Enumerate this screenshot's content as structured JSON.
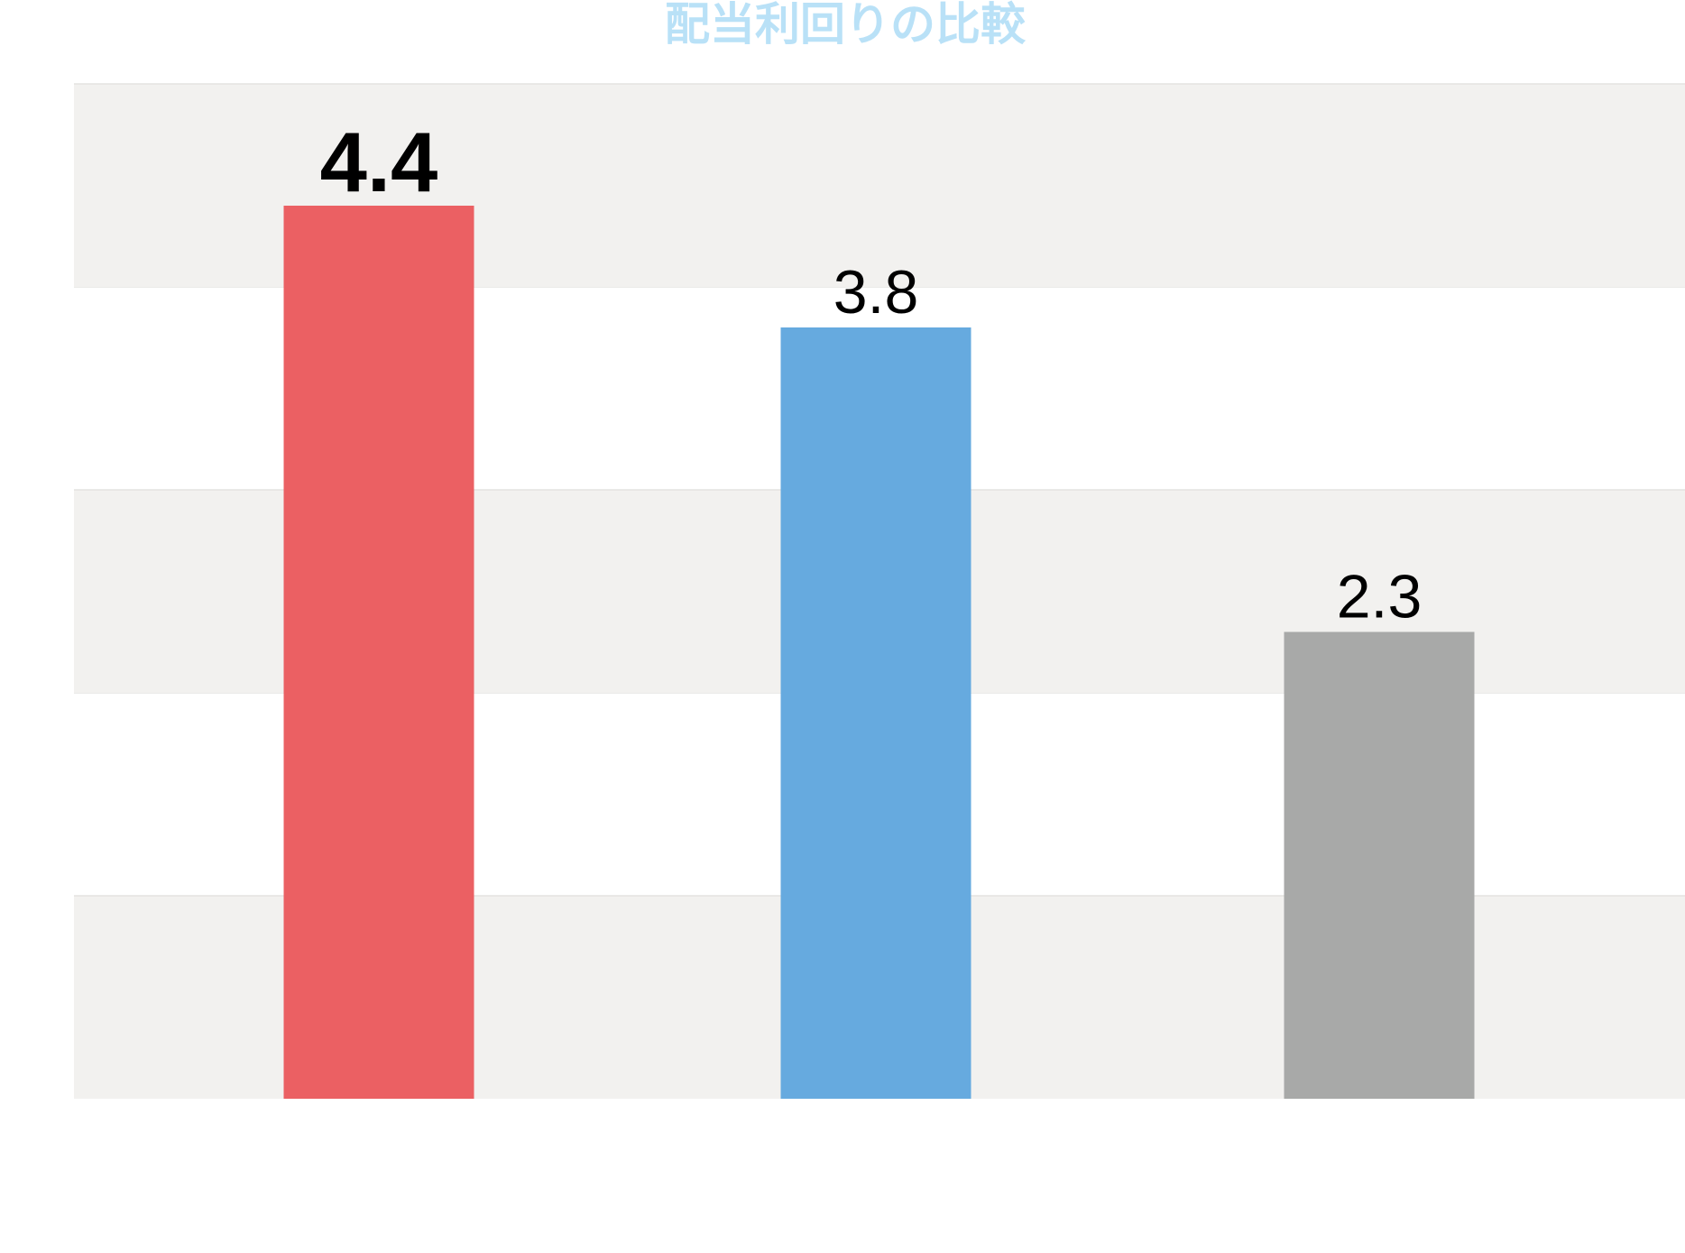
{
  "chart_data": {
    "type": "bar",
    "title": "配当利回りの比較",
    "categories": [
      "",
      "",
      ""
    ],
    "values": [
      4.4,
      3.8,
      2.3
    ],
    "value_labels": [
      "4.4",
      "3.8",
      "2.3"
    ],
    "highlight_index": 0,
    "colors": [
      "#eb6063",
      "#66aadf",
      "#a8a9a8"
    ],
    "title_color": "#b9e1f7",
    "band_color": "#f2f1ef",
    "ylim": [
      0,
      5
    ],
    "grid": true,
    "xlabel": "",
    "ylabel": ""
  }
}
